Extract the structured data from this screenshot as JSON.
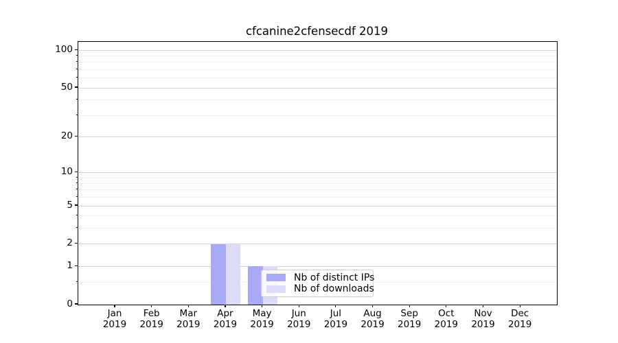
{
  "chart_data": {
    "type": "bar",
    "title": "cfcanine2cfensecdf 2019",
    "x_tick_year": "2019",
    "categories": [
      "Jan",
      "Feb",
      "Mar",
      "Apr",
      "May",
      "Jun",
      "Jul",
      "Aug",
      "Sep",
      "Oct",
      "Nov",
      "Dec"
    ],
    "series": [
      {
        "name": "Nb of distinct IPs",
        "color": "#a9aaf6",
        "values": [
          0,
          0,
          0,
          2,
          1,
          0,
          0,
          0,
          0,
          0,
          0,
          0
        ]
      },
      {
        "name": "Nb of downloads",
        "color": "#dcdcf9",
        "values": [
          0,
          0,
          0,
          2,
          1,
          0,
          0,
          0,
          0,
          0,
          0,
          0
        ]
      }
    ],
    "xlabel": "",
    "ylabel": "",
    "yscale": "log1p",
    "ylim": [
      0,
      116
    ],
    "y_major_ticks": [
      0,
      1,
      2,
      5,
      10,
      20,
      50,
      100
    ],
    "y_minor_ticks": [
      0.5,
      3,
      4,
      6,
      7,
      8,
      9,
      30,
      40,
      60,
      70,
      80,
      90
    ],
    "grid": "horizontal",
    "legend_position": "lower center (inside plot)"
  },
  "colors": {
    "background": "#ffffff",
    "bar_distinct_ips": "#a9aaf6",
    "bar_downloads": "#dcdcf9",
    "grid_major": "#d4d4d4",
    "grid_minor": "#eeeeee",
    "axis": "#000000",
    "text": "#000000",
    "legend_border": "#cccccc",
    "legend_background": "rgba(255,255,255,0.8)"
  }
}
